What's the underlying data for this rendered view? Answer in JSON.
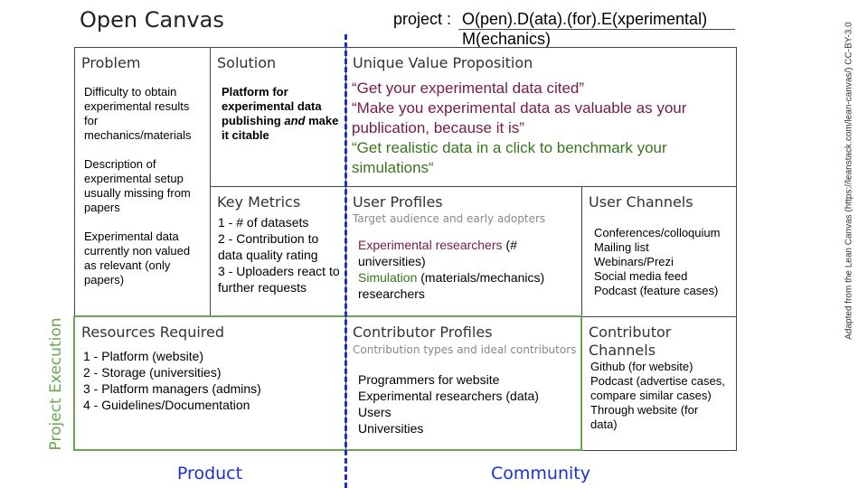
{
  "header": {
    "title": "Open Canvas",
    "project_label": "project :",
    "project_name_line1": "O(pen).D(ata).(for).E(xperimental)",
    "project_name_line2": "M(echanics)"
  },
  "canvas": {
    "problem": {
      "title": "Problem",
      "items": [
        "Difficulty to obtain experimental results for mechanics/materials",
        "Description of experimental setup usually missing from papers",
        "Experimental data currently non valued as relevant (only papers)"
      ]
    },
    "solution": {
      "title": "Solution",
      "text_parts": [
        "Platform for experimental data publishing",
        "and",
        "make it citable"
      ]
    },
    "unique_value_proposition": {
      "title": "Unique Value Proposition",
      "quotes": [
        "“Get your experimental data cited”",
        "“Make you experimental data as valuable as your publication, because it is”",
        "“Get realistic data in a click to benchmark your simulations“"
      ]
    },
    "key_metrics": {
      "title": "Key Metrics",
      "items": [
        "1 - # of datasets",
        "2 - Contribution to data quality rating",
        "3 - Uploaders react to further requests"
      ]
    },
    "user_profiles": {
      "title": "User Profiles",
      "subtitle": "Target audience and early adopters",
      "items": [
        {
          "highlight": "Experimental researchers",
          "rest": "(# universities)"
        },
        {
          "highlight": "Simulation",
          "rest": "(materials/mechanics) researchers"
        }
      ]
    },
    "user_channels": {
      "title": "User Channels",
      "items": [
        "Conferences/colloquium",
        "Mailing list",
        "Webinars/Prezi",
        "Social media feed",
        "Podcast (feature cases)"
      ]
    },
    "resources_required": {
      "title": "Resources Required",
      "items": [
        "1 - Platform (website)",
        "2 - Storage (universities)",
        "3 - Platform managers (admins)",
        "4 - Guidelines/Documentation"
      ]
    },
    "contributor_profiles": {
      "title": "Contributor Profiles",
      "subtitle": "Contribution types and ideal contributors",
      "items": [
        "Programmers for website",
        "Experimental researchers (data)",
        "Users",
        "Universities"
      ]
    },
    "contributor_channels": {
      "title": "Contributor Channels",
      "items": [
        "Github (for website)",
        "Podcast (advertise cases, compare similar cases)",
        "Through website (for data)"
      ]
    }
  },
  "labels": {
    "project_execution": "Project Execution",
    "product": "Product",
    "community": "Community",
    "attribution": "Adapted from the Lean Canvas (https://leanstack.com/lean-canvas/) CC-BY-3.0"
  }
}
